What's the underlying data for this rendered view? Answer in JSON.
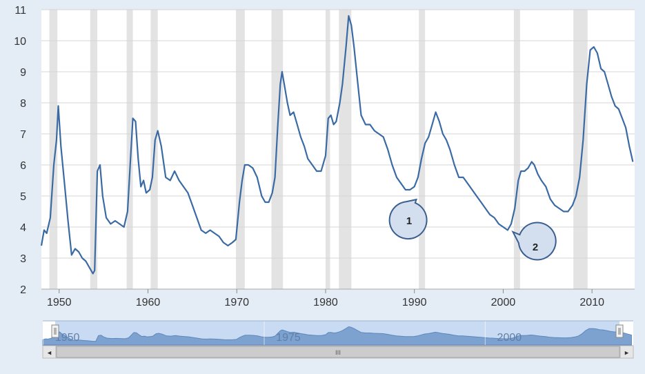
{
  "chart_data": {
    "type": "line",
    "xlim": [
      1948,
      2014.8
    ],
    "ylim": [
      2,
      11
    ],
    "x_ticks": [
      "1950",
      "1960",
      "1970",
      "1980",
      "1990",
      "2000",
      "2010"
    ],
    "y_ticks": [
      "2",
      "3",
      "4",
      "5",
      "6",
      "7",
      "8",
      "9",
      "10",
      "11"
    ],
    "grid": true,
    "recessions": [
      [
        1948.9,
        1949.8
      ],
      [
        1953.5,
        1954.3
      ],
      [
        1957.6,
        1958.3
      ],
      [
        1960.3,
        1961.1
      ],
      [
        1969.9,
        1970.9
      ],
      [
        1973.9,
        1975.2
      ],
      [
        1980.0,
        1980.5
      ],
      [
        1981.5,
        1982.9
      ],
      [
        1990.5,
        1991.2
      ],
      [
        2001.2,
        2001.9
      ],
      [
        2007.9,
        2009.5
      ]
    ],
    "series": [
      {
        "color": "#3a6aa4",
        "x": [
          1948.0,
          1948.3,
          1948.6,
          1949.0,
          1949.4,
          1949.7,
          1949.9,
          1950.2,
          1950.6,
          1951.0,
          1951.4,
          1951.8,
          1952.2,
          1952.6,
          1953.0,
          1953.4,
          1953.8,
          1954.0,
          1954.3,
          1954.6,
          1954.9,
          1955.3,
          1955.8,
          1956.3,
          1956.8,
          1957.3,
          1957.7,
          1958.0,
          1958.3,
          1958.6,
          1958.9,
          1959.2,
          1959.5,
          1959.8,
          1960.2,
          1960.5,
          1960.8,
          1961.1,
          1961.5,
          1962.0,
          1962.5,
          1963.0,
          1963.5,
          1964.0,
          1964.5,
          1965.0,
          1965.5,
          1966.0,
          1966.5,
          1967.0,
          1967.5,
          1968.0,
          1968.5,
          1969.0,
          1969.5,
          1969.9,
          1970.3,
          1970.6,
          1970.9,
          1971.3,
          1971.8,
          1972.3,
          1972.8,
          1973.2,
          1973.6,
          1974.0,
          1974.3,
          1974.6,
          1974.9,
          1975.1,
          1975.4,
          1975.7,
          1976.0,
          1976.4,
          1976.8,
          1977.2,
          1977.6,
          1978.0,
          1978.5,
          1979.0,
          1979.5,
          1980.0,
          1980.3,
          1980.6,
          1980.9,
          1981.2,
          1981.6,
          1981.9,
          1982.3,
          1982.6,
          1982.9,
          1983.2,
          1983.6,
          1984.0,
          1984.5,
          1985.0,
          1985.5,
          1986.0,
          1986.5,
          1987.0,
          1987.5,
          1988.0,
          1988.5,
          1989.0,
          1989.5,
          1990.0,
          1990.4,
          1990.8,
          1991.2,
          1991.6,
          1992.0,
          1992.4,
          1992.8,
          1993.2,
          1993.6,
          1994.0,
          1994.5,
          1995.0,
          1995.5,
          1996.0,
          1996.5,
          1997.0,
          1997.5,
          1998.0,
          1998.5,
          1999.0,
          1999.5,
          2000.0,
          2000.5,
          2000.9,
          2001.3,
          2001.7,
          2002.0,
          2002.4,
          2002.8,
          2003.2,
          2003.5,
          2003.9,
          2004.3,
          2004.8,
          2005.3,
          2005.8,
          2006.3,
          2006.8,
          2007.3,
          2007.8,
          2008.2,
          2008.6,
          2009.0,
          2009.4,
          2009.8,
          2010.2,
          2010.6,
          2011.0,
          2011.4,
          2011.8,
          2012.2,
          2012.6,
          2013.0,
          2013.4,
          2013.8,
          2014.2,
          2014.6
        ],
        "y": [
          3.4,
          3.9,
          3.8,
          4.3,
          6.0,
          6.8,
          7.9,
          6.6,
          5.4,
          4.2,
          3.1,
          3.3,
          3.2,
          3.0,
          2.9,
          2.7,
          2.5,
          2.6,
          5.8,
          6.0,
          5.0,
          4.3,
          4.1,
          4.2,
          4.1,
          4.0,
          4.5,
          6.0,
          7.5,
          7.4,
          6.2,
          5.3,
          5.5,
          5.1,
          5.2,
          5.6,
          6.8,
          7.1,
          6.6,
          5.6,
          5.5,
          5.8,
          5.5,
          5.3,
          5.1,
          4.7,
          4.3,
          3.9,
          3.8,
          3.9,
          3.8,
          3.7,
          3.5,
          3.4,
          3.5,
          3.6,
          4.8,
          5.5,
          6.0,
          6.0,
          5.9,
          5.6,
          5.0,
          4.8,
          4.8,
          5.1,
          5.6,
          7.2,
          8.6,
          9.0,
          8.5,
          8.0,
          7.6,
          7.7,
          7.3,
          6.9,
          6.6,
          6.2,
          6.0,
          5.8,
          5.8,
          6.3,
          7.5,
          7.6,
          7.3,
          7.4,
          8.0,
          8.6,
          9.8,
          10.8,
          10.5,
          9.8,
          8.7,
          7.6,
          7.3,
          7.3,
          7.1,
          7.0,
          6.9,
          6.5,
          6.0,
          5.6,
          5.4,
          5.2,
          5.2,
          5.3,
          5.6,
          6.2,
          6.7,
          6.9,
          7.3,
          7.7,
          7.4,
          7.0,
          6.8,
          6.5,
          6.0,
          5.6,
          5.6,
          5.4,
          5.2,
          5.0,
          4.8,
          4.6,
          4.4,
          4.3,
          4.1,
          4.0,
          3.9,
          4.1,
          4.6,
          5.5,
          5.8,
          5.8,
          5.9,
          6.1,
          6.0,
          5.7,
          5.5,
          5.3,
          4.9,
          4.7,
          4.6,
          4.5,
          4.5,
          4.7,
          5.0,
          5.6,
          6.8,
          8.6,
          9.7,
          9.8,
          9.6,
          9.1,
          9.0,
          8.6,
          8.2,
          7.9,
          7.8,
          7.5,
          7.2,
          6.6,
          6.1
        ]
      }
    ]
  },
  "callouts": [
    {
      "label": "1"
    },
    {
      "label": "2"
    }
  ],
  "navigator": {
    "tick_labels": [
      "1950",
      "1975",
      "2000"
    ],
    "scroll_left_icon": "◂",
    "scroll_right_icon": "▸",
    "grip_icon": "III"
  }
}
